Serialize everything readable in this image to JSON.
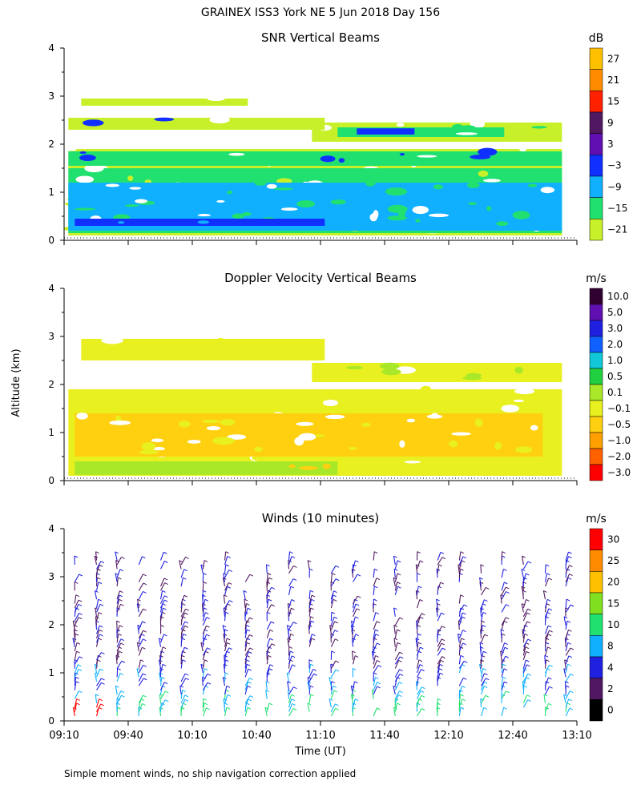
{
  "figure_title": "GRAINEX ISS3 York NE   5 Jun 2018 Day 156",
  "shared": {
    "ylabel": "Altitude (km)",
    "xlabel": "Time (UT)",
    "footnote": "Simple moment winds, no ship navigation correction applied",
    "time_ticks": [
      "09:10",
      "09:40",
      "10:10",
      "10:40",
      "11:10",
      "11:40",
      "12:10",
      "12:40",
      "13:10"
    ],
    "altitude_ticks": [
      "0",
      "1",
      "2",
      "3",
      "4"
    ]
  },
  "chart_data": [
    {
      "type": "heatmap",
      "title": "SNR Vertical Beams",
      "colorbar_unit": "dB",
      "colorbar_ticks": [
        "27",
        "21",
        "15",
        "9",
        "3",
        "−3",
        "−9",
        "−15",
        "−21"
      ],
      "colorbar_colors": [
        "#ffc000",
        "#ff8c00",
        "#ff2000",
        "#501860",
        "#6010b0",
        "#1030ff",
        "#10b0ff",
        "#20e070",
        "#c8f028"
      ],
      "xlim": [
        9.1667,
        13.1667
      ],
      "ylim": [
        0,
        4
      ],
      "layers": [
        {
          "t0": 9.2,
          "t1": 13.05,
          "z0": 0.1,
          "z1": 1.9,
          "color": "#c8f028"
        },
        {
          "t0": 9.2,
          "t1": 13.05,
          "z0": 0.15,
          "z1": 1.5,
          "color": "#20e070"
        },
        {
          "t0": 9.2,
          "t1": 13.05,
          "z0": 0.2,
          "z1": 1.2,
          "color": "#10b0ff"
        },
        {
          "t0": 9.25,
          "t1": 11.2,
          "z0": 0.3,
          "z1": 0.45,
          "color": "#1030ff"
        },
        {
          "t0": 9.2,
          "t1": 13.05,
          "z0": 1.55,
          "z1": 1.85,
          "color": "#20e070"
        },
        {
          "t0": 11.1,
          "t1": 13.05,
          "z0": 2.05,
          "z1": 2.45,
          "color": "#c8f028"
        },
        {
          "t0": 11.3,
          "t1": 12.6,
          "z0": 2.15,
          "z1": 2.35,
          "color": "#20e070"
        },
        {
          "t0": 11.45,
          "t1": 11.9,
          "z0": 2.2,
          "z1": 2.33,
          "color": "#1030ff"
        },
        {
          "t0": 9.2,
          "t1": 11.2,
          "z0": 2.3,
          "z1": 2.55,
          "color": "#c8f028"
        },
        {
          "t0": 9.3,
          "t1": 10.6,
          "z0": 2.8,
          "z1": 2.95,
          "color": "#c8f028"
        }
      ]
    },
    {
      "type": "heatmap",
      "title": "Doppler Velocity Vertical Beams",
      "colorbar_unit": "m/s",
      "colorbar_ticks": [
        "10.0",
        "5.0",
        "3.0",
        "2.0",
        "1.0",
        "0.5",
        "0.1",
        "−0.1",
        "−0.5",
        "−1.0",
        "−2.0",
        "−3.0"
      ],
      "colorbar_colors": [
        "#300030",
        "#6010b0",
        "#2020e0",
        "#1060ff",
        "#10c8d8",
        "#20d040",
        "#a8e828",
        "#e8f020",
        "#ffd010",
        "#ffa000",
        "#ff6000",
        "#ff0000"
      ],
      "xlim": [
        9.1667,
        13.1667
      ],
      "ylim": [
        0,
        4
      ],
      "layers": [
        {
          "t0": 9.2,
          "t1": 13.05,
          "z0": 0.1,
          "z1": 1.9,
          "color": "#e8f020"
        },
        {
          "t0": 9.25,
          "t1": 12.9,
          "z0": 0.5,
          "z1": 1.4,
          "color": "#ffd010"
        },
        {
          "t0": 9.25,
          "t1": 11.3,
          "z0": 0.12,
          "z1": 0.4,
          "color": "#a8e828"
        },
        {
          "t0": 11.1,
          "t1": 13.05,
          "z0": 2.05,
          "z1": 2.45,
          "color": "#e8f020"
        },
        {
          "t0": 9.3,
          "t1": 11.2,
          "z0": 2.5,
          "z1": 2.95,
          "color": "#e8f020"
        }
      ]
    },
    {
      "type": "scatter",
      "title": "Winds (10 minutes)",
      "colorbar_unit": "m/s",
      "colorbar_ticks": [
        "30",
        "25",
        "20",
        "15",
        "10",
        "8",
        "4",
        "2",
        "0"
      ],
      "colorbar_colors": [
        "#ff0000",
        "#ff8c00",
        "#ffc000",
        "#80e020",
        "#20e070",
        "#10b0ff",
        "#2020e0",
        "#501860",
        "#000000"
      ],
      "xlim": [
        9.1667,
        13.1667
      ],
      "ylim": [
        0,
        4
      ],
      "profile_times": [
        9.25,
        9.42,
        9.58,
        9.75,
        9.92,
        10.08,
        10.25,
        10.42,
        10.58,
        10.75,
        10.92,
        11.08,
        11.25,
        11.42,
        11.58,
        11.75,
        11.92,
        12.08,
        12.25,
        12.42,
        12.58,
        12.75,
        12.92,
        13.08
      ]
    }
  ]
}
